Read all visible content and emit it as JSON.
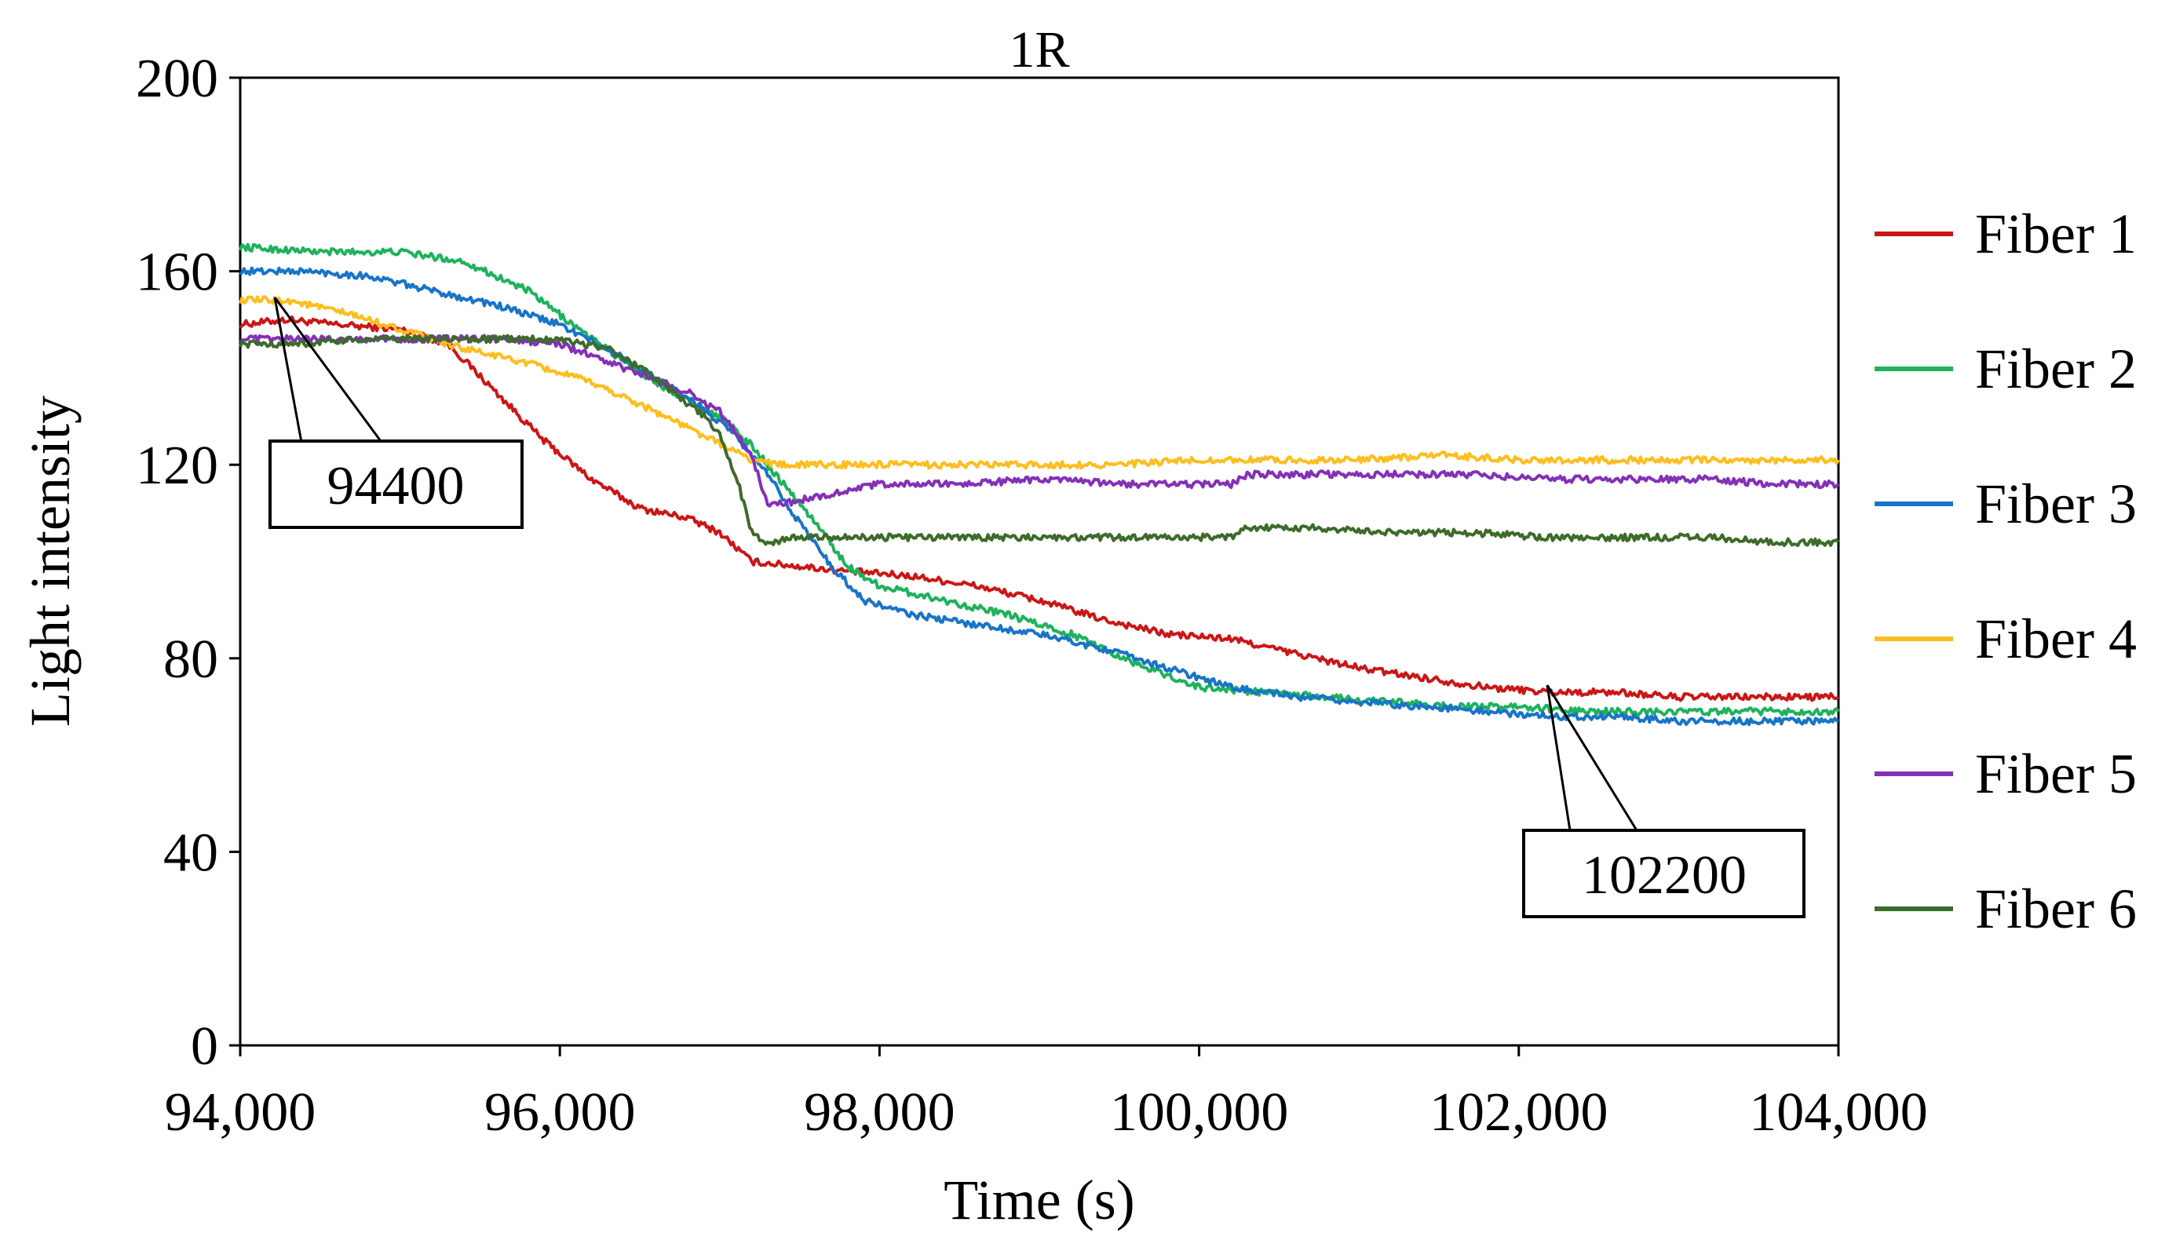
{
  "chart_data": {
    "type": "line",
    "title": "1R",
    "xlabel": "Time (s)",
    "ylabel": "Light intensity",
    "xlim": [
      94000,
      104000
    ],
    "ylim": [
      0,
      200
    ],
    "xticks": [
      94000,
      96000,
      98000,
      100000,
      102000,
      104000
    ],
    "xtick_labels": [
      "94,000",
      "96,000",
      "98,000",
      "100,000",
      "102,000",
      "104,000"
    ],
    "yticks": [
      0,
      40,
      80,
      120,
      160,
      200
    ],
    "ytick_labels": [
      "0",
      "40",
      "80",
      "120",
      "160",
      "200"
    ],
    "grid": false,
    "legend_position": "right",
    "series": [
      {
        "name": "Fiber 1",
        "color": "#cc1616",
        "x": [
          94000,
          94300,
          94600,
          95000,
          95300,
          95600,
          95900,
          96200,
          96500,
          96800,
          97000,
          97200,
          97500,
          97800,
          98200,
          98600,
          99000,
          99400,
          99800,
          100200,
          100600,
          101000,
          101400,
          101800,
          102200,
          102600,
          103000,
          103500,
          104000
        ],
        "y": [
          149,
          150,
          149,
          148,
          145,
          135,
          125,
          117,
          111,
          109,
          106,
          100,
          99,
          98,
          97,
          95,
          92,
          88,
          85,
          84,
          81,
          78,
          76,
          74,
          73,
          73,
          72,
          72,
          72
        ]
      },
      {
        "name": "Fiber 2",
        "color": "#1eb25c",
        "x": [
          94000,
          94500,
          95000,
          95400,
          95800,
          96200,
          96600,
          97000,
          97200,
          97400,
          97600,
          97800,
          98000,
          98400,
          98800,
          99200,
          99600,
          100000,
          100400,
          100800,
          101200,
          101600,
          102000,
          102400,
          102800,
          103200,
          103600,
          104000
        ],
        "y": [
          165,
          164,
          164,
          162,
          156,
          146,
          137,
          130,
          124,
          116,
          108,
          99,
          95,
          92,
          89,
          85,
          79,
          74,
          73,
          72,
          71,
          70,
          70,
          69,
          69,
          69,
          69,
          69
        ]
      },
      {
        "name": "Fiber 3",
        "color": "#1874c8",
        "x": [
          94000,
          94400,
          94800,
          95200,
          95600,
          96000,
          96400,
          96800,
          97100,
          97300,
          97500,
          97700,
          97900,
          98200,
          98600,
          99000,
          99400,
          99800,
          100200,
          100600,
          101000,
          101400,
          101800,
          102200,
          102600,
          103000,
          103500,
          104000
        ],
        "y": [
          160,
          160,
          159,
          156,
          153,
          149,
          142,
          134,
          126,
          118,
          108,
          99,
          92,
          89,
          87,
          85,
          82,
          78,
          74,
          72,
          71,
          70,
          69,
          68,
          68,
          67,
          67,
          67
        ]
      },
      {
        "name": "Fiber 4",
        "color": "#ffbe1e",
        "x": [
          94000,
          94300,
          94700,
          95000,
          95400,
          95800,
          96200,
          96600,
          96900,
          97200,
          97400,
          97800,
          98200,
          98600,
          99000,
          99500,
          100000,
          100500,
          101000,
          101500,
          102000,
          102500,
          103000,
          103500,
          104000
        ],
        "y": [
          154,
          154,
          151,
          148,
          144,
          141,
          137,
          131,
          126,
          121,
          120,
          120,
          120,
          120,
          120,
          120,
          121,
          121,
          121,
          122,
          121,
          121,
          121,
          121,
          121
        ]
      },
      {
        "name": "Fiber 5",
        "color": "#8430b8",
        "x": [
          94000,
          94400,
          94800,
          95200,
          95600,
          96000,
          96400,
          96800,
          97000,
          97200,
          97300,
          97400,
          97700,
          98000,
          98500,
          99000,
          99500,
          100000,
          100200,
          100300,
          100700,
          101200,
          101700,
          102200,
          102700,
          103200,
          103600,
          104000
        ],
        "y": [
          146,
          146,
          146,
          146,
          146,
          145,
          140,
          135,
          131,
          122,
          112,
          112,
          114,
          116,
          116,
          117,
          116,
          116,
          116,
          118,
          118,
          118,
          118,
          117,
          117,
          117,
          116,
          116
        ]
      },
      {
        "name": "Fiber 6",
        "color": "#3d6b2a",
        "x": [
          94000,
          94400,
          94800,
          95200,
          95600,
          96000,
          96300,
          96600,
          96900,
          97000,
          97100,
          97200,
          97300,
          97500,
          98000,
          98500,
          99000,
          99500,
          100000,
          100200,
          100300,
          100700,
          101200,
          101700,
          102200,
          102700,
          103200,
          103600,
          104000
        ],
        "y": [
          145,
          145,
          146,
          146,
          146,
          146,
          144,
          138,
          130,
          126,
          118,
          106,
          104,
          105,
          105,
          105,
          105,
          105,
          105,
          105,
          107,
          107,
          106,
          106,
          105,
          105,
          105,
          104,
          104
        ]
      }
    ],
    "annotations": [
      {
        "text": "94400",
        "point_x": 94400,
        "point_y": 154
      },
      {
        "text": "102200",
        "point_x": 102200,
        "point_y": 74
      }
    ]
  }
}
